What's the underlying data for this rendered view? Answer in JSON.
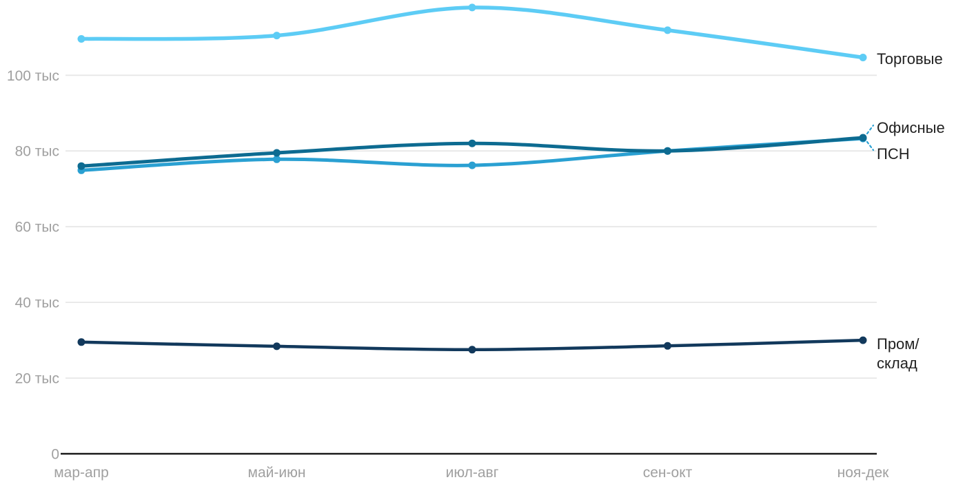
{
  "chart_data": {
    "type": "line",
    "title": "",
    "categories": [
      "мар-апр",
      "май-июн",
      "июл-авг",
      "сен-окт",
      "ноя-дек"
    ],
    "y_ticks": [
      {
        "value": 0,
        "label": "0"
      },
      {
        "value": 20,
        "label": "20 тыс"
      },
      {
        "value": 40,
        "label": "40 тыс"
      },
      {
        "value": 60,
        "label": "60 тыс"
      },
      {
        "value": 80,
        "label": "80 тыс"
      },
      {
        "value": 100,
        "label": "100 тыс"
      }
    ],
    "ylim": [
      0,
      120
    ],
    "grid": true,
    "legend_position": "right-edge-labels",
    "series": [
      {
        "name": "Торговые",
        "label_lines": [
          "Торговые"
        ],
        "color": "#5dccf5",
        "values": [
          109.6,
          110.5,
          117.9,
          111.9,
          104.7
        ]
      },
      {
        "name": "ПСН",
        "label_lines": [
          "ПСН"
        ],
        "color": "#2aa0d2",
        "values": [
          74.9,
          77.8,
          76.2,
          80.0,
          83.3
        ]
      },
      {
        "name": "Офисные",
        "label_lines": [
          "Офисные"
        ],
        "color": "#0d6b91",
        "values": [
          76.0,
          79.5,
          82.0,
          80.0,
          83.5
        ]
      },
      {
        "name": "Пром/склад",
        "label_lines": [
          "Пром/",
          "склад"
        ],
        "color": "#12395c",
        "values": [
          29.5,
          28.4,
          27.5,
          28.5,
          30.0
        ]
      }
    ],
    "colors": {
      "background": "#ffffff",
      "axis": "#1a1a1a",
      "grid": "#e7e7e7",
      "tick_label": "#a0a0a0",
      "series_label": "#212121",
      "leader_dash": "#2aa0d2"
    }
  }
}
